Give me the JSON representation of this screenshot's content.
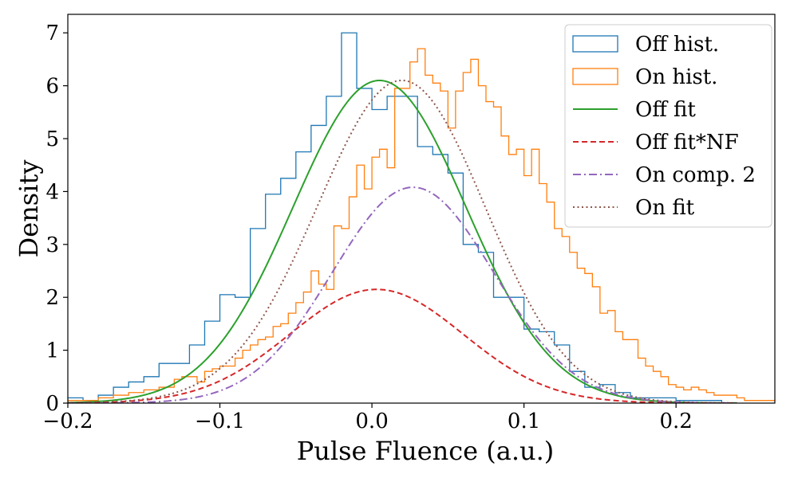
{
  "chart_data": {
    "type": "line",
    "xlabel": "Pulse Fluence (a.u.)",
    "ylabel": "Density",
    "xlim": [
      -0.2,
      0.265
    ],
    "ylim": [
      0,
      7.35
    ],
    "xticks": [
      -0.2,
      -0.1,
      0.0,
      0.1,
      0.2
    ],
    "xtick_labels": [
      "−0.2",
      "−0.1",
      "0.0",
      "0.1",
      "0.2"
    ],
    "yticks": [
      0,
      1,
      2,
      3,
      4,
      5,
      6,
      7
    ],
    "ytick_labels": [
      "0",
      "1",
      "2",
      "3",
      "4",
      "5",
      "6",
      "7"
    ],
    "grid": false,
    "legend_position": "top-right",
    "series": [
      {
        "name": "Off hist.",
        "kind": "step-histogram",
        "color": "#1f77b4",
        "bin_start": -0.2,
        "bin_width": 0.01,
        "values": [
          0.1,
          0.05,
          0.15,
          0.3,
          0.4,
          0.5,
          0.75,
          0.75,
          1.1,
          1.55,
          2.05,
          2.0,
          3.3,
          3.95,
          4.25,
          4.75,
          5.25,
          5.8,
          7.0,
          5.95,
          5.55,
          5.8,
          5.8,
          4.85,
          4.7,
          4.35,
          3.0,
          2.85,
          2.0,
          2.0,
          1.4,
          1.35,
          1.1,
          0.6,
          0.3,
          0.35,
          0.2,
          0.1,
          0.1,
          0.1,
          0.05,
          0.05,
          0.05,
          0.0
        ]
      },
      {
        "name": "On hist.",
        "kind": "step-histogram",
        "color": "#ff7f0e",
        "bin_start": -0.2,
        "bin_width": 0.005,
        "values": [
          0.05,
          0.05,
          0.05,
          0.05,
          0.1,
          0.1,
          0.15,
          0.15,
          0.2,
          0.2,
          0.25,
          0.25,
          0.3,
          0.3,
          0.45,
          0.5,
          0.5,
          0.4,
          0.6,
          0.65,
          0.7,
          0.7,
          0.85,
          1.0,
          1.1,
          1.2,
          1.25,
          1.45,
          1.5,
          1.7,
          1.9,
          2.1,
          2.5,
          2.25,
          2.15,
          3.35,
          3.3,
          3.9,
          4.5,
          4.05,
          4.65,
          4.8,
          4.45,
          5.95,
          5.95,
          6.45,
          6.7,
          6.2,
          6.05,
          5.9,
          5.2,
          5.9,
          6.25,
          6.5,
          6.0,
          5.7,
          5.6,
          5.05,
          4.7,
          4.8,
          4.3,
          4.8,
          4.15,
          3.8,
          3.3,
          3.15,
          2.85,
          2.55,
          2.45,
          2.2,
          1.7,
          1.75,
          1.35,
          1.2,
          1.2,
          0.85,
          0.7,
          0.6,
          0.5,
          0.35,
          0.3,
          0.25,
          0.3,
          0.25,
          0.2,
          0.15,
          0.15,
          0.15,
          0.1,
          0.05,
          0.05,
          0.05,
          0.05,
          0.05,
          0.05,
          0.05,
          0.0
        ]
      },
      {
        "name": "Off fit",
        "kind": "gaussian",
        "color": "#2ca02c",
        "style": "solid",
        "amplitude": 6.1,
        "mu": 0.005,
        "sigma": 0.057
      },
      {
        "name": "Off fit*NF",
        "kind": "gaussian",
        "color": "#d62728",
        "style": "dashed",
        "amplitude": 2.15,
        "mu": 0.003,
        "sigma": 0.057
      },
      {
        "name": "On comp. 2",
        "kind": "gaussian",
        "color": "#9467bd",
        "style": "dashdot",
        "amplitude": 4.08,
        "mu": 0.027,
        "sigma": 0.053
      },
      {
        "name": "On fit",
        "kind": "gaussian-sum",
        "color": "#8c564b",
        "style": "dotted",
        "components": [
          {
            "amplitude": 2.15,
            "mu": 0.003,
            "sigma": 0.057
          },
          {
            "amplitude": 4.08,
            "mu": 0.027,
            "sigma": 0.053
          }
        ]
      }
    ]
  }
}
